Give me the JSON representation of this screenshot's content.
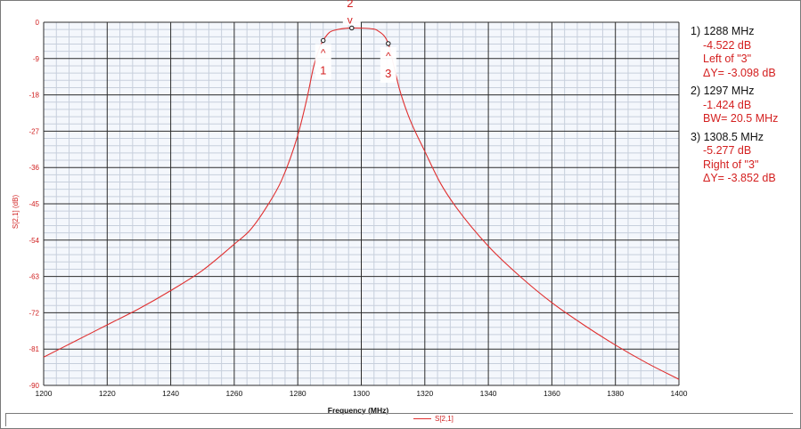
{
  "chart_data": {
    "type": "line",
    "title": "",
    "xlabel": "Frequency (MHz)",
    "ylabel": "S[2,1] (dB)",
    "xlim": [
      1200,
      1400
    ],
    "ylim": [
      -90,
      0
    ],
    "x_ticks": [
      1200,
      1220,
      1240,
      1260,
      1280,
      1300,
      1320,
      1340,
      1360,
      1380,
      1400
    ],
    "x_tick_labels": [
      "1200",
      "1220",
      "1240",
      "1260",
      "1280",
      "1300",
      "1320",
      "1340",
      "1360",
      "1380",
      "1400"
    ],
    "y_ticks": [
      0,
      -9,
      -18,
      -27,
      -36,
      -45,
      -54,
      -63,
      -72,
      -81,
      -90
    ],
    "y_tick_labels": [
      "0",
      "-9",
      "-18",
      "-27",
      "-36",
      "-45",
      "-54",
      "-63",
      "-72",
      "-81",
      "-90"
    ],
    "minor_grid": true,
    "legend": [
      "S[2,1]"
    ],
    "colors": {
      "trace": "#e03030",
      "grid_major": "#2b2b2b",
      "grid_minor": "#c7cfdc",
      "plot_bg": "#f4f7fc"
    },
    "series": [
      {
        "name": "S[2,1]",
        "x": [
          1200,
          1210,
          1220,
          1230,
          1240,
          1250,
          1260,
          1265,
          1270,
          1275,
          1280,
          1283,
          1285,
          1287,
          1288,
          1290,
          1292,
          1295,
          1297,
          1300,
          1303,
          1305,
          1308.5,
          1310,
          1312,
          1315,
          1320,
          1325,
          1330,
          1340,
          1350,
          1360,
          1370,
          1380,
          1390,
          1400
        ],
        "y": [
          -83,
          -79,
          -75,
          -71,
          -66.5,
          -61.5,
          -55,
          -51.5,
          -46,
          -39,
          -28,
          -18.5,
          -11,
          -6,
          -4.5,
          -2.5,
          -1.9,
          -1.5,
          -1.424,
          -1.45,
          -1.6,
          -2.0,
          -5.277,
          -10,
          -16.5,
          -23.5,
          -32,
          -40,
          -46,
          -55.5,
          -63,
          -69.5,
          -75,
          -80,
          -84.5,
          -88.5
        ]
      }
    ],
    "markers": [
      {
        "id": "1",
        "x": 1288,
        "y": -4.522,
        "symbol": "^",
        "label_pos": "below"
      },
      {
        "id": "2",
        "x": 1297,
        "y": -1.424,
        "symbol": "v",
        "label_pos": "above"
      },
      {
        "id": "3",
        "x": 1308.5,
        "y": -5.277,
        "symbol": "^",
        "label_pos": "below"
      }
    ],
    "readouts": [
      {
        "head": "1) 1288 MHz",
        "lines": [
          "-4.522 dB",
          "Left of \"3\"",
          "ΔY= -3.098 dB"
        ]
      },
      {
        "head": "2) 1297 MHz",
        "lines": [
          "-1.424 dB",
          "BW= 20.5 MHz"
        ]
      },
      {
        "head": "3) 1308.5 MHz",
        "lines": [
          "-5.277 dB",
          "Right of \"3\"",
          "ΔY= -3.852 dB"
        ]
      }
    ]
  }
}
